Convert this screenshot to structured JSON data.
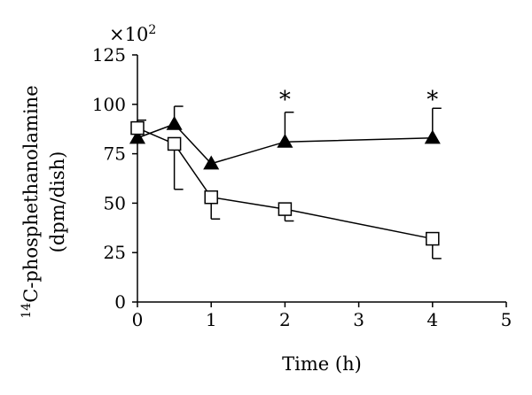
{
  "chart_data": {
    "type": "line",
    "title": "",
    "xlabel": "Time (h)",
    "ylabel_line1": "C-phosphethanolamine",
    "ylabel_superscript": "14",
    "ylabel_line2": "(dpm/dish)",
    "y_multiplier": "×10",
    "y_multiplier_exp": "2",
    "xlim": [
      0,
      5
    ],
    "ylim": [
      0,
      125
    ],
    "x_ticks": [
      0,
      1,
      2,
      3,
      4,
      5
    ],
    "y_ticks": [
      0,
      25,
      50,
      75,
      100,
      125
    ],
    "grid": false,
    "legend": "none",
    "series": [
      {
        "name": "filled-triangle",
        "marker": "triangle",
        "filled": true,
        "x": [
          0,
          0.5,
          1,
          2,
          4
        ],
        "y": [
          83,
          90,
          70,
          81,
          83
        ],
        "error_up": [
          0,
          9,
          0,
          15,
          15
        ],
        "error_down": [
          0,
          0,
          0,
          0,
          0
        ]
      },
      {
        "name": "open-square",
        "marker": "square",
        "filled": false,
        "x": [
          0,
          0.5,
          1,
          2,
          4
        ],
        "y": [
          88,
          80,
          53,
          47,
          32
        ],
        "error_up": [
          4,
          0,
          0,
          0,
          0
        ],
        "error_down": [
          0,
          23,
          11,
          6,
          10
        ]
      }
    ],
    "annotations": [
      {
        "x": 2,
        "y": 103,
        "text": "*"
      },
      {
        "x": 4,
        "y": 103,
        "text": "*"
      }
    ]
  }
}
